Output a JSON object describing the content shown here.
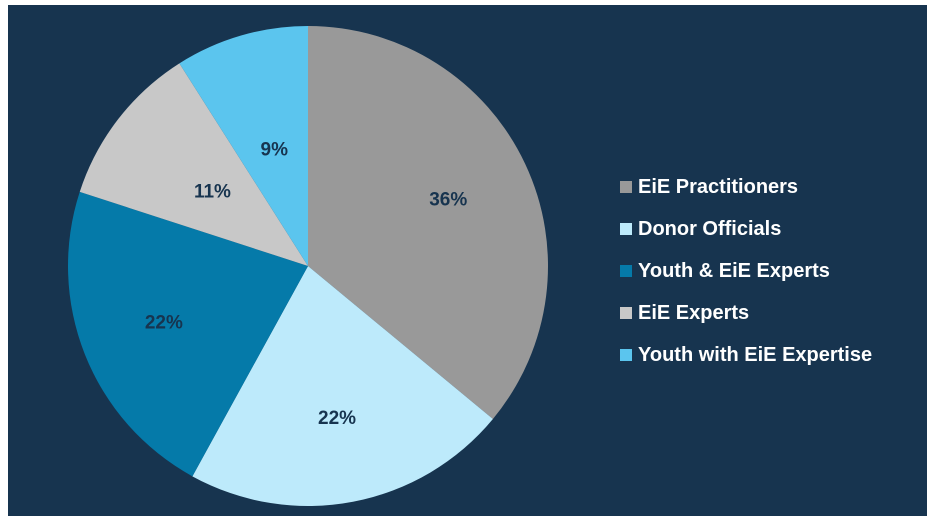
{
  "chart_data": {
    "type": "pie",
    "title": "",
    "slices": [
      {
        "label": "EiE Practitioners",
        "value": 36,
        "display": "36%",
        "color": "#999999"
      },
      {
        "label": "Donor Officials",
        "value": 22,
        "display": "22%",
        "color": "#bdeafb"
      },
      {
        "label": "Youth & EiE Experts",
        "value": 22,
        "display": "22%",
        "color": "#057aa9"
      },
      {
        "label": "EiE Experts",
        "value": 11,
        "display": "11%",
        "color": "#c8c8c8"
      },
      {
        "label": "Youth with EiE Expertise",
        "value": 9,
        "display": "9%",
        "color": "#5bc5ee"
      }
    ],
    "legend_position": "right"
  }
}
